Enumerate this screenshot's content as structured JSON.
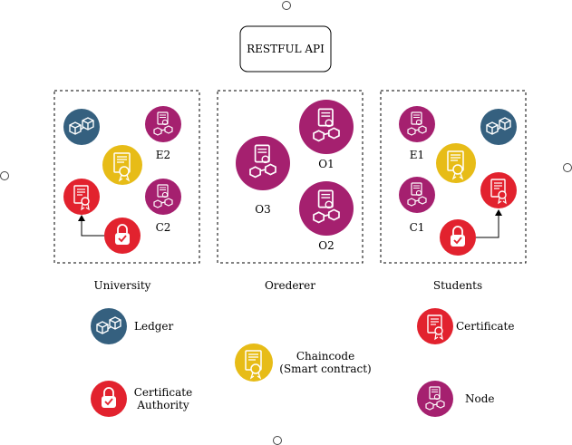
{
  "api": {
    "label": "RESTFUL API"
  },
  "groups": {
    "university": {
      "label": "University"
    },
    "orderer": {
      "label": "Orederer"
    },
    "students": {
      "label": "Students"
    }
  },
  "nodes": {
    "e2": "E2",
    "c2": "C2",
    "o1": "O1",
    "o2": "O2",
    "o3": "O3",
    "e1": "E1",
    "c1": "C1"
  },
  "legend": {
    "ledger": "Ledger",
    "certificate": "Certificate",
    "chaincode_line1": "Chaincode",
    "chaincode_line2": "(Smart contract)",
    "ca_line1": "Certificate",
    "ca_line2": "Authority",
    "node": "Node"
  },
  "colors": {
    "ledger": "#35607f",
    "node": "#a5206f",
    "chaincode": "#e7bc17",
    "certificate": "#e2222e",
    "ca": "#e2222e"
  },
  "icons": {
    "ledger": "chain-cubes-icon",
    "node": "certificate-chain-icon",
    "chaincode": "smart-contract-icon",
    "certificate": "certificate-icon",
    "ca": "padlock-check-icon"
  }
}
